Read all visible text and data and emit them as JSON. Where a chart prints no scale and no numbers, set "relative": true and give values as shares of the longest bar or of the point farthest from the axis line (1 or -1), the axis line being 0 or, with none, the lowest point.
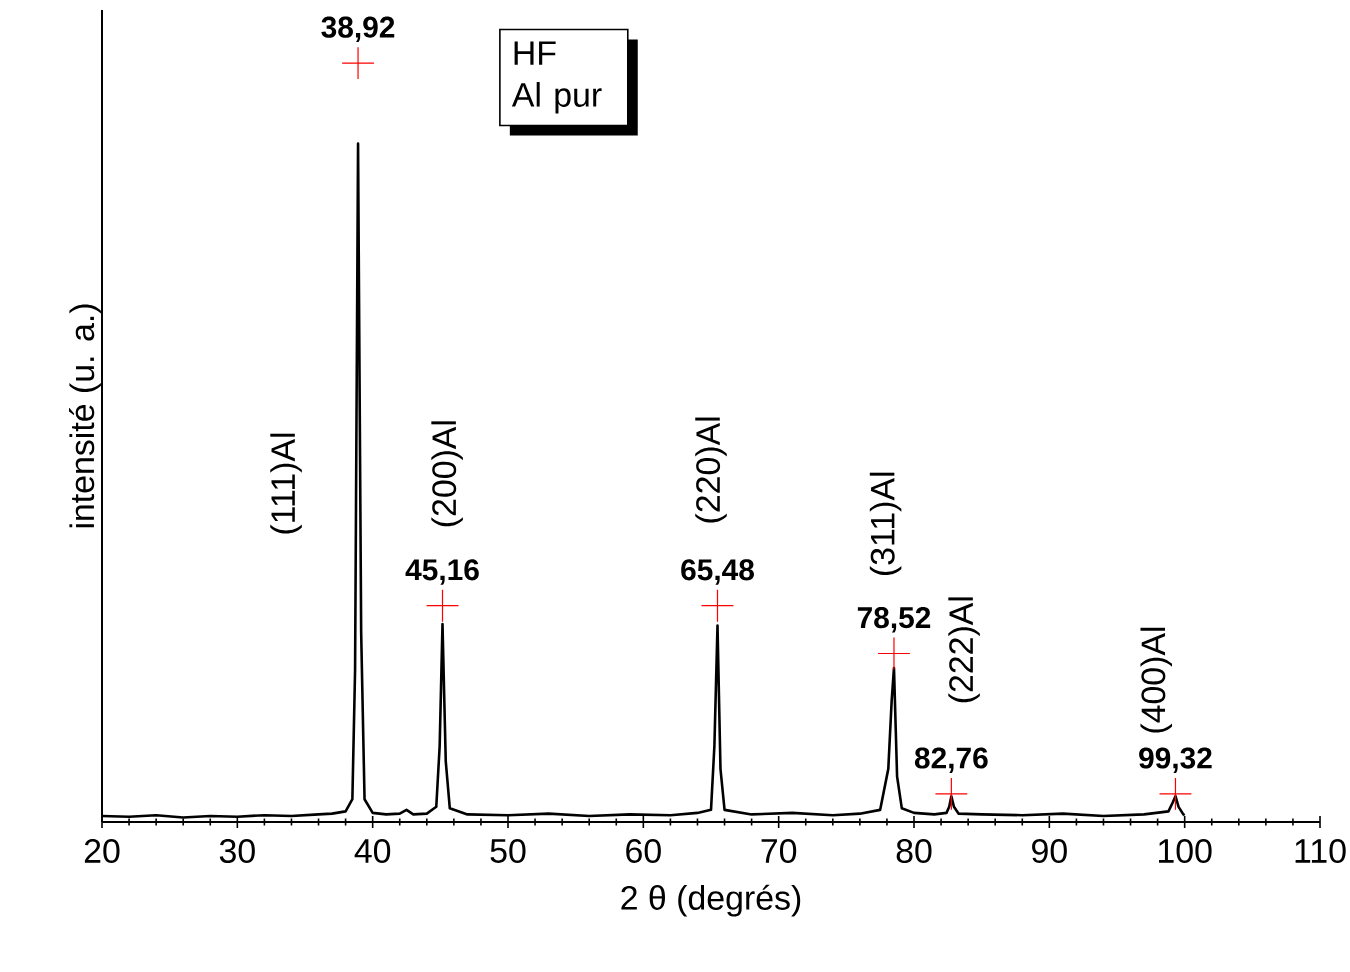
{
  "chart_data": {
    "type": "line",
    "relative": true,
    "xlabel": "2 θ (degrés)",
    "ylabel": "intensité (u. a.)",
    "xlim": [
      20,
      110
    ],
    "xticks": [
      20,
      30,
      40,
      50,
      60,
      70,
      80,
      90,
      100,
      110
    ],
    "series": [
      {
        "color": "#000000",
        "marker": "none",
        "line_style": "solid",
        "x": [
          20,
          22,
          24,
          26,
          28,
          30,
          32,
          34,
          36,
          37,
          38,
          38.5,
          38.7,
          38.92,
          39.15,
          39.4,
          40,
          41,
          42,
          42.5,
          43,
          44,
          44.7,
          44.95,
          45.16,
          45.4,
          45.7,
          47,
          50,
          53,
          56,
          59,
          62,
          64,
          65,
          65.25,
          65.48,
          65.7,
          66,
          68,
          71,
          74,
          76,
          77.5,
          78.1,
          78.35,
          78.52,
          78.75,
          79.1,
          80,
          81.5,
          82.4,
          82.6,
          82.76,
          82.95,
          83.3,
          85,
          88,
          91,
          94,
          97,
          98.8,
          99.1,
          99.32,
          99.55,
          99.9,
          100
        ],
        "values": [
          0.008,
          0.007,
          0.009,
          0.006,
          0.008,
          0.007,
          0.009,
          0.008,
          0.01,
          0.011,
          0.014,
          0.03,
          0.2,
          0.894,
          0.25,
          0.03,
          0.012,
          0.01,
          0.011,
          0.016,
          0.01,
          0.011,
          0.02,
          0.1,
          0.261,
          0.08,
          0.018,
          0.01,
          0.009,
          0.011,
          0.008,
          0.01,
          0.009,
          0.012,
          0.016,
          0.1,
          0.259,
          0.07,
          0.016,
          0.01,
          0.012,
          0.009,
          0.011,
          0.016,
          0.07,
          0.16,
          0.203,
          0.06,
          0.018,
          0.012,
          0.01,
          0.012,
          0.02,
          0.034,
          0.02,
          0.011,
          0.01,
          0.009,
          0.011,
          0.008,
          0.01,
          0.014,
          0.025,
          0.034,
          0.02,
          0.01,
          0.009
        ]
      },
      {
        "type": "scatter",
        "color": "#ff0000",
        "marker": "cross",
        "x": [
          38.92,
          45.16,
          65.48,
          78.52,
          82.76,
          99.32
        ],
        "values": [
          1,
          0.285,
          0.285,
          0.222,
          0.037,
          0.037
        ]
      }
    ],
    "annotations": [
      {
        "text": "38,92",
        "x": 38.92,
        "y": 1
      },
      {
        "text": "45,16",
        "x": 45.16,
        "y": 0.285
      },
      {
        "text": "65,48",
        "x": 65.48,
        "y": 0.285
      },
      {
        "text": "78,52",
        "x": 78.52,
        "y": 0.222
      },
      {
        "text": "82,76",
        "x": 82.76,
        "y": 0.037
      },
      {
        "text": "99,32",
        "x": 99.32,
        "y": 0.037
      },
      "(111)Al",
      "(200)Al",
      "(220)Al",
      "(311)Al",
      "(222)Al",
      "(400)Al",
      "HF",
      "Al pur"
    ]
  }
}
